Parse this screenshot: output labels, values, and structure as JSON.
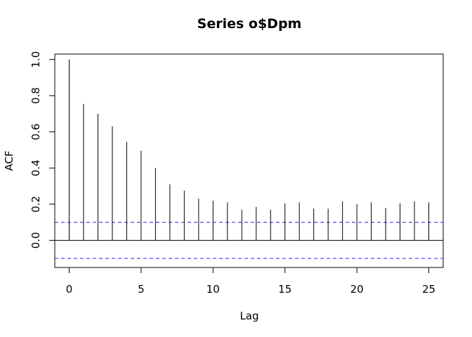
{
  "chart_data": {
    "type": "bar",
    "title": "Series  o$Dpm",
    "xlabel": "Lag",
    "ylabel": "ACF",
    "x": [
      0,
      1,
      2,
      3,
      4,
      5,
      6,
      7,
      8,
      9,
      10,
      11,
      12,
      13,
      14,
      15,
      16,
      17,
      18,
      19,
      20,
      21,
      22,
      23,
      24,
      25
    ],
    "values": [
      1.0,
      0.755,
      0.7,
      0.63,
      0.545,
      0.495,
      0.4,
      0.31,
      0.275,
      0.23,
      0.22,
      0.21,
      0.17,
      0.185,
      0.17,
      0.205,
      0.21,
      0.175,
      0.175,
      0.215,
      0.2,
      0.21,
      0.18,
      0.205,
      0.215,
      0.21
    ],
    "confidence_band": 0.1,
    "confidence_color": "#4d4dff",
    "xlim": [
      -1,
      26
    ],
    "ylim": [
      -0.15,
      1.03
    ],
    "xticks": [
      0,
      5,
      10,
      15,
      20,
      25
    ],
    "xtick_labels": [
      "0",
      "5",
      "10",
      "15",
      "20",
      "25"
    ],
    "yticks": [
      0.0,
      0.2,
      0.4,
      0.6,
      0.8,
      1.0
    ],
    "ytick_labels": [
      "0.0",
      "0.2",
      "0.4",
      "0.6",
      "0.8",
      "1.0"
    ],
    "grid": false
  }
}
